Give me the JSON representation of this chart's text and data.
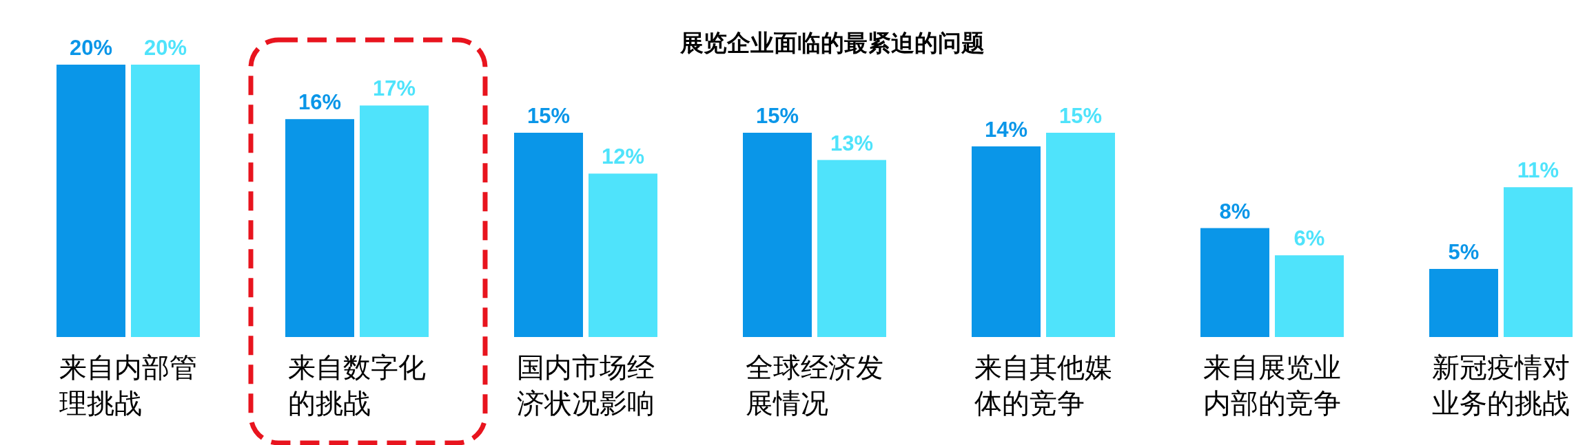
{
  "chart_data": {
    "type": "bar",
    "title": "展览企业面临的最紧迫的问题",
    "categories": [
      "来自内部管理挑战",
      "来自数字化的挑战",
      "国内市场经济状况影响",
      "全球经济发展情况",
      "来自其他媒体的竞争",
      "来自展览业内部的竞争",
      "新冠疫情对业务的挑战"
    ],
    "series": [
      {
        "color": "#0a96e8",
        "values": [
          20,
          16,
          15,
          15,
          14,
          8,
          5
        ],
        "value_labels": [
          "20%",
          "16%",
          "15%",
          "15%",
          "14%",
          "8%",
          "5%"
        ]
      },
      {
        "color": "#4fe3fb",
        "values": [
          20,
          17,
          12,
          13,
          15,
          6,
          11
        ],
        "value_labels": [
          "20%",
          "17%",
          "12%",
          "13%",
          "15%",
          "6%",
          "11%"
        ]
      }
    ],
    "data_labels": false
  }
}
